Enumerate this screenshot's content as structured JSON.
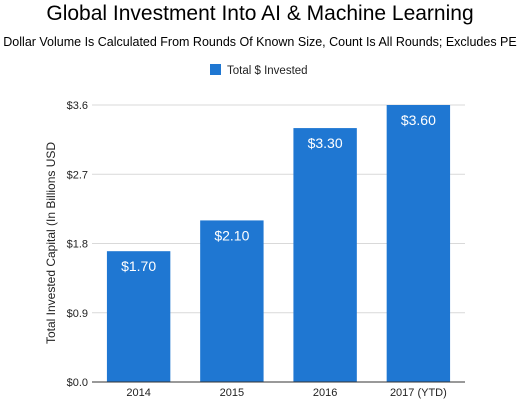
{
  "chart_data": {
    "type": "bar",
    "title": "Global Investment Into AI & Machine Learning",
    "subtitle": "Dollar Volume Is Calculated From Rounds Of Known Size, Count Is All Rounds; Excludes PE",
    "xlabel": "",
    "ylabel": "Total Invested Capital (In Billions USD",
    "categories": [
      "2014",
      "2015",
      "2016",
      "2017 (YTD)"
    ],
    "series": [
      {
        "name": "Total $ Invested",
        "values": [
          1.7,
          2.1,
          3.3,
          3.6
        ],
        "labels": [
          "$1.70",
          "$2.10",
          "$3.30",
          "$3.60"
        ],
        "color": "#1f77d2"
      }
    ],
    "ylim": [
      0,
      3.6
    ],
    "yticks": [
      0,
      0.9,
      1.8,
      2.7,
      3.6
    ],
    "ytick_labels": [
      "$0.0",
      "$0.9",
      "$1.8",
      "$2.7",
      "$3.6"
    ],
    "grid": true,
    "legend_position": "top-center"
  }
}
